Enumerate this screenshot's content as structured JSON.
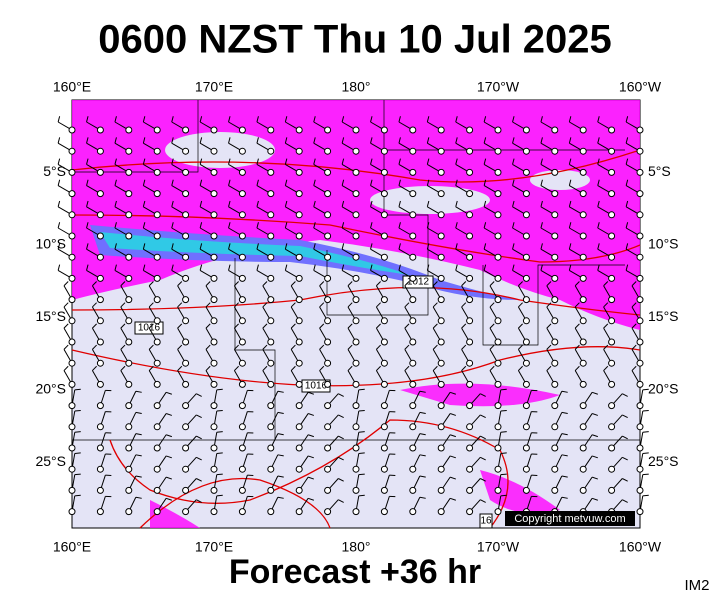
{
  "header": {
    "title": "0600 NZST Thu 10 Jul 2025"
  },
  "map": {
    "lon_labels": [
      "160°E",
      "170°E",
      "180°",
      "170°W",
      "160°W"
    ],
    "lat_labels": [
      "5°S",
      "10°S",
      "15°S",
      "20°S",
      "25°S"
    ],
    "isobar_labels": [
      "1012",
      "1016",
      "1016",
      "16"
    ],
    "copyright": "Copyright metvuw.com"
  },
  "footer": {
    "forecast": "Forecast +36 hr",
    "code": "IM2"
  }
}
